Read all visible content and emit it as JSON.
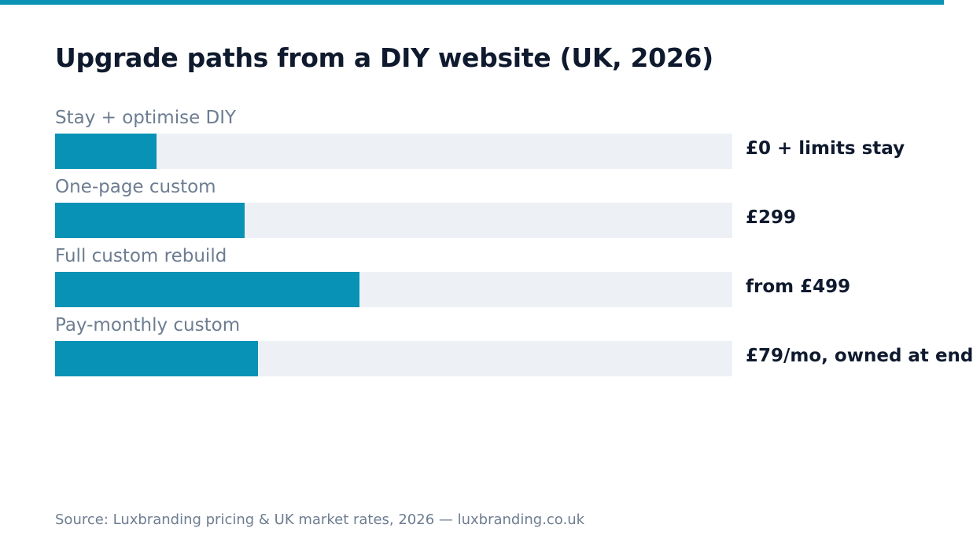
{
  "colors": {
    "accent": "#0b93b6",
    "bar_fill": "#0892b5",
    "track": "#edf1f5",
    "title": "#0f1a2e",
    "muted": "#6d7d91"
  },
  "chart_data": {
    "type": "bar",
    "orientation": "horizontal",
    "title": "Upgrade paths from a DIY website (UK, 2026)",
    "categories": [
      "Stay + optimise DIY",
      "One-page custom",
      "Full custom rebuild",
      "Pay-monthly custom"
    ],
    "value_labels": [
      "£0 + limits stay",
      "£299",
      "from £499",
      "£79/mo, owned at end"
    ],
    "fill_fractions": [
      0.15,
      0.28,
      0.45,
      0.3
    ],
    "grid": false,
    "legend": "none"
  },
  "source": "Source: Luxbranding pricing & UK market rates, 2026 — luxbranding.co.uk"
}
